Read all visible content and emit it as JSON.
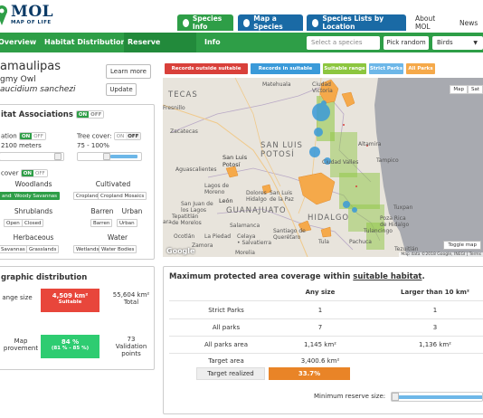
{
  "header": {
    "logo_text": "MOL",
    "logo_sub": "MAP OF LIFE",
    "nav": {
      "species_info": "Species Info",
      "map_species": "Map a Species",
      "species_lists": "Species Lists by Location",
      "about": "About MOL",
      "news": "News"
    }
  },
  "subnav": {
    "tabs": [
      "Overview",
      "Habitat Distribution",
      "Reserve Coverage",
      "Info"
    ],
    "active_tab": "Reserve Coverage",
    "select_species_placeholder": "Select a species",
    "pick_random": "Pick random",
    "group_select": "Birds"
  },
  "species": {
    "name": "amaulipas",
    "common": "gmy Owl",
    "scientific": "aucidium sanchezi",
    "learn_more": "Learn more",
    "update": "Update"
  },
  "habitat": {
    "title": "itat Associations",
    "toggle_on": "ON",
    "toggle_off": "OFF",
    "elevation_label": "ation",
    "elevation_range": "2100 meters",
    "tree_cover_label": "Tree cover:",
    "tree_cover_range": "75 - 100%",
    "cover_label": "cover",
    "categories": {
      "woodlands": "Woodlands",
      "cultivated": "Cultivated",
      "shrublands": "Shrublands",
      "barren": "Barren",
      "urban": "Urban",
      "herbaceous": "Herbaceous",
      "water": "Water"
    },
    "chips": {
      "ands": "ands",
      "woody_savannas": "Woody Savannas",
      "cropland": "Cropland",
      "cropland_mosaics": "Cropland Mosaics",
      "open": "Open",
      "closed": "Closed",
      "barren": "Barren",
      "urban": "Urban",
      "savannas": "Savannas",
      "grasslands": "Grasslands",
      "wetlands": "Wetlands",
      "water_bodies": "Water Bodies"
    }
  },
  "geo": {
    "title": "graphic distribution",
    "range_label": "ange size",
    "suitable_value": "4,509 km²",
    "suitable_label": "Suitable",
    "total_value": "55,604 km²",
    "total_label": "Total",
    "map_label_1": "Map",
    "map_label_2": "provement",
    "improvement_value": "84 %",
    "improvement_range": "(81 % - 85 %)",
    "validation_value": "73",
    "validation_label_1": "Validation",
    "validation_label_2": "points"
  },
  "legend": {
    "outside": "Records outside suitable range",
    "inside": "Records in suitable range",
    "suitable": "Suitable range",
    "strict": "Strict Parks",
    "all": "All Parks"
  },
  "map": {
    "labels": {
      "tecas": "TECAS",
      "matehuala": "Matehuala",
      "victoria": "Ciudad\nVictoria",
      "fresnillo": "Fresnillo",
      "zacatecas": "Zacatecas",
      "sanluis_city": "San Luis\nPotosí",
      "sanluis_state": "SAN LUIS\nPOTOSÍ",
      "valles": "Ciudad Valles",
      "altamira": "Altamira",
      "tampico": "Tampico",
      "aguascalientes": "Aguascalientes",
      "lagos": "Lagos de\nMoreno",
      "leon": "León",
      "dolores": "Dolores\nHidalgo",
      "sanluispaz": "San Luis\nde la Paz",
      "sanjuan": "San Juan de\nlos Lagos",
      "guanajuato": "GUANAJUATO",
      "tepatitlan": "Tepatitlán\nde Morelos",
      "salamanca": "Salamanca",
      "hidalgo": "HIDALGO",
      "tuxpan": "Tuxpan",
      "pozarica": "Poza Rica\nde Hidalgo",
      "ocotlan": "Ocotlán",
      "lapiedad": "La Piedad",
      "santiago": "Santiago de\nQuerétaro",
      "celaya": "Celaya\n• Salvatierra",
      "tula": "Tula",
      "pachuca": "Pachuca",
      "tulancingo": "Tulancingo",
      "zamora": "Zamora",
      "morelia": "Morelia",
      "tezuitlan": "Tezuitlán",
      "ara": "ara"
    },
    "map_btn": "Map",
    "sat_btn": "Sat",
    "toggle_btn": "Toggle map",
    "credit": "Map data ©2018 Google, INEGI | Terms",
    "google": "Google"
  },
  "coverage": {
    "title_prefix": "Maximum protected area coverage within ",
    "title_link": "suitable habitat",
    "title_suffix": ".",
    "col_any": "Any size",
    "col_large": "Larger than 10 km²",
    "rows": [
      {
        "label": "Strict Parks",
        "any": "1",
        "large": "1"
      },
      {
        "label": "All parks",
        "any": "7",
        "large": "3"
      },
      {
        "label": "All parks area",
        "any": "1,145 km²",
        "large": "1,136 km²"
      },
      {
        "label": "Target area",
        "any": "3,400.6 km²",
        "large": ""
      }
    ],
    "target_realized_label": "Target realized",
    "target_realized_value": "33.7%",
    "min_reserve_label": "Minimum reserve size:",
    "min_reserve_fraction": 0.0
  },
  "colors": {
    "green": "#2e9e47",
    "blue": "#1a6aa5",
    "red_outside": "#d9403a",
    "blue_inside": "#3a9ad9",
    "suitable": "#8cc63f",
    "strict": "#6db7e8",
    "all": "#f5a94a",
    "orange": "#e98427"
  }
}
